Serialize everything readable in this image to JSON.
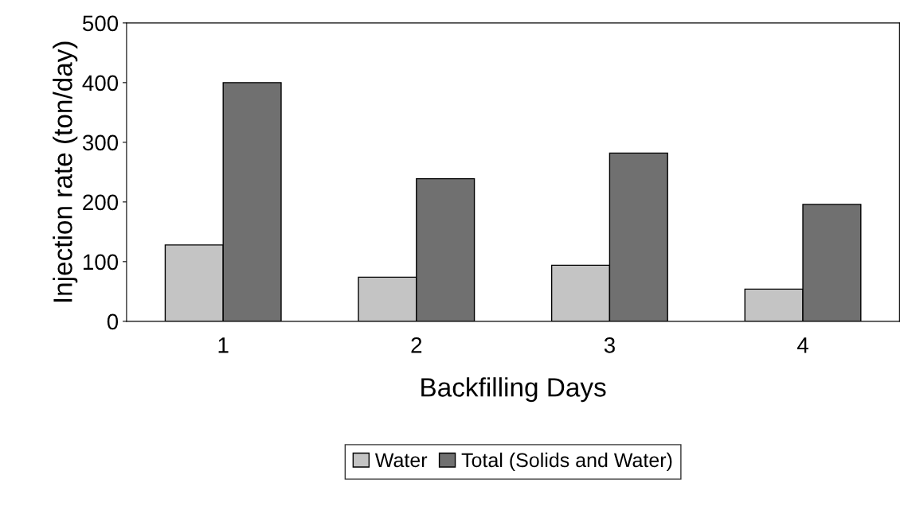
{
  "chart_data": {
    "type": "bar",
    "xlabel": "Backfilling Days",
    "ylabel": "Injection rate (ton/day)",
    "categories": [
      "1",
      "2",
      "3",
      "4"
    ],
    "series": [
      {
        "name": "Water",
        "color": "#c4c4c4",
        "values": [
          128,
          74,
          94,
          54
        ]
      },
      {
        "name": "Total (Solids and Water)",
        "color": "#707070",
        "values": [
          400,
          239,
          282,
          196
        ]
      }
    ],
    "ylim": [
      0,
      500
    ],
    "yticks": [
      0,
      100,
      200,
      300,
      400,
      500
    ],
    "grid": false,
    "legend": "bottom"
  }
}
